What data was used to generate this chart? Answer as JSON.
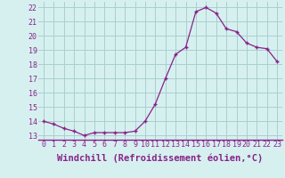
{
  "x": [
    0,
    1,
    2,
    3,
    4,
    5,
    6,
    7,
    8,
    9,
    10,
    11,
    12,
    13,
    14,
    15,
    16,
    17,
    18,
    19,
    20,
    21,
    22,
    23
  ],
  "y": [
    14.0,
    13.8,
    13.5,
    13.3,
    13.0,
    13.2,
    13.2,
    13.2,
    13.2,
    13.3,
    14.0,
    15.2,
    17.0,
    18.7,
    19.2,
    21.7,
    22.0,
    21.6,
    20.5,
    20.3,
    19.5,
    19.2,
    19.1,
    18.2
  ],
  "line_color": "#882288",
  "marker": "+",
  "bg_color": "#d6f0f0",
  "grid_color": "#aacece",
  "axis_color": "#882288",
  "xlabel": "Windchill (Refroidissement éolien,°C)",
  "xlabel_fontsize": 7.5,
  "ytick_labels": [
    "13",
    "14",
    "15",
    "16",
    "17",
    "18",
    "19",
    "20",
    "21",
    "22"
  ],
  "ytick_values": [
    13,
    14,
    15,
    16,
    17,
    18,
    19,
    20,
    21,
    22
  ],
  "xtick_labels": [
    "0",
    "1",
    "2",
    "3",
    "4",
    "5",
    "6",
    "7",
    "8",
    "9",
    "10",
    "11",
    "12",
    "13",
    "14",
    "15",
    "16",
    "17",
    "18",
    "19",
    "20",
    "21",
    "22",
    "23"
  ],
  "ylim": [
    12.7,
    22.4
  ],
  "xlim": [
    -0.5,
    23.5
  ],
  "tick_fontsize": 6.0
}
